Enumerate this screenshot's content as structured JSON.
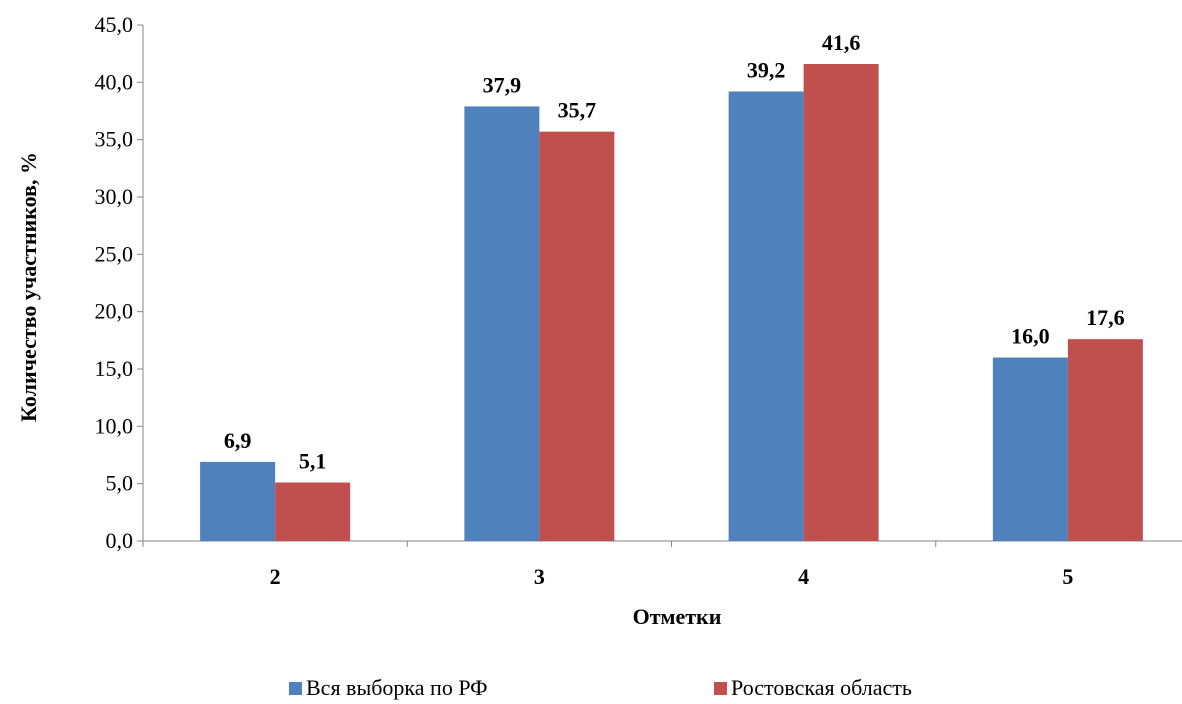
{
  "chart_data": {
    "type": "bar",
    "categories": [
      "2",
      "3",
      "4",
      "5"
    ],
    "series": [
      {
        "name": "Вся выборка по РФ",
        "values": [
          6.9,
          37.9,
          39.2,
          16.0
        ],
        "labels": [
          "6,9",
          "37,9",
          "39,2",
          "16,0"
        ],
        "color": "#4F81BD"
      },
      {
        "name": "Ростовская область",
        "values": [
          5.1,
          35.7,
          41.6,
          17.6
        ],
        "labels": [
          "5,1",
          "35,7",
          "41,6",
          "17,6"
        ],
        "color": "#C0504D"
      }
    ],
    "title": "",
    "xlabel": "Отметки",
    "ylabel": "Количество участников, %",
    "ylim": [
      0,
      45
    ],
    "yticks": [
      0,
      5,
      10,
      15,
      20,
      25,
      30,
      35,
      40,
      45
    ],
    "ytick_labels": [
      "0,0",
      "5,0",
      "10,0",
      "15,0",
      "20,0",
      "25,0",
      "30,0",
      "35,0",
      "40,0",
      "45,0"
    ],
    "grid": false,
    "legend_position": "bottom"
  }
}
